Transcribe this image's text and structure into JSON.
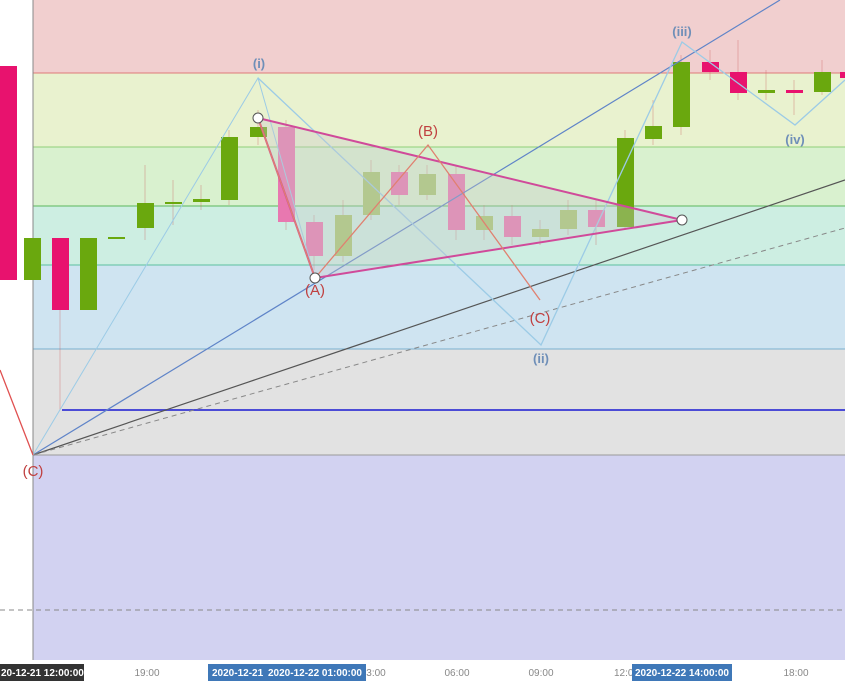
{
  "waves": {
    "i": "(i)",
    "ii": "(ii)",
    "iii": "(iii)",
    "iv": "(iv)",
    "a": "(A)",
    "b": "(B)",
    "c": "(C)",
    "c_left": "(C)"
  },
  "axis": {
    "labels": [
      "19:00",
      "3:00",
      "06:00",
      "09:00",
      "12:0",
      "18:00"
    ],
    "badges": [
      "20-12-21 12:00:00",
      "2020-12-21",
      "2020-12-22 01:00:00",
      "2020-12-22 14:00:00"
    ]
  }
}
